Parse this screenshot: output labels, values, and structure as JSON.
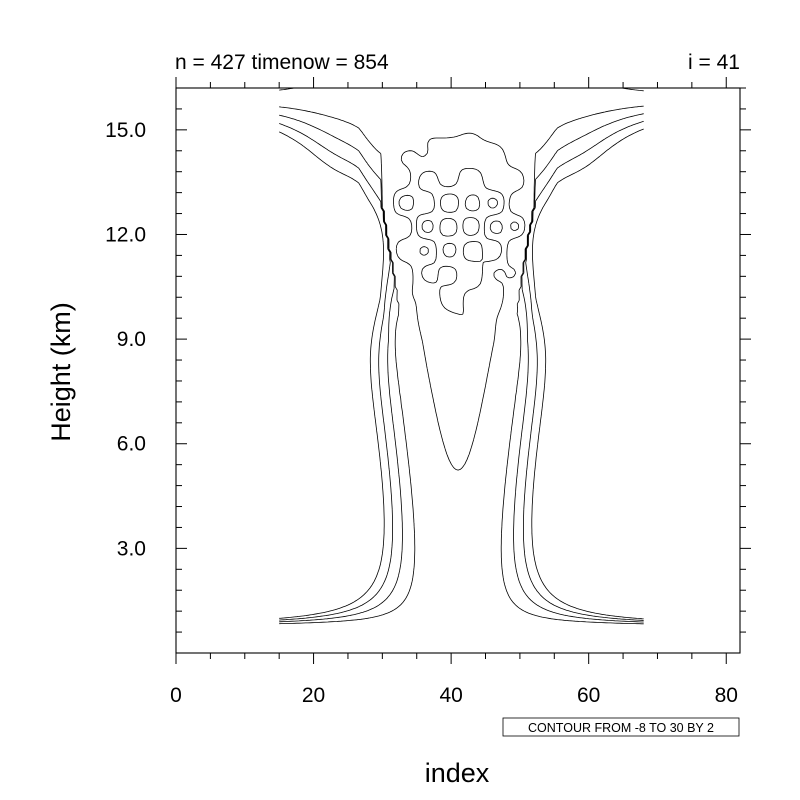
{
  "chart_data": {
    "type": "contour",
    "title_left": "n = 427 timenow = 854",
    "title_right": "i = 41",
    "xlabel": "index",
    "ylabel": "Height (km)",
    "xlim": [
      0,
      82
    ],
    "ylim": [
      0,
      16.2
    ],
    "x_ticks": [
      {
        "value": 0,
        "label": "0"
      },
      {
        "value": 20,
        "label": "20"
      },
      {
        "value": 40,
        "label": "40"
      },
      {
        "value": 60,
        "label": "60"
      },
      {
        "value": 80,
        "label": "80"
      }
    ],
    "y_ticks": [
      {
        "value": 3,
        "label": "3.0"
      },
      {
        "value": 6,
        "label": "6.0"
      },
      {
        "value": 9,
        "label": "9.0"
      },
      {
        "value": 12,
        "label": "12.0"
      },
      {
        "value": 15,
        "label": "15.0"
      }
    ],
    "contour_info": "CONTOUR FROM -8 TO 30 BY 2",
    "contour_levels": {
      "min": -8,
      "max": 30,
      "step": 2
    },
    "positive_lines": "solid",
    "negative_lines": "dashed",
    "grid": false
  }
}
